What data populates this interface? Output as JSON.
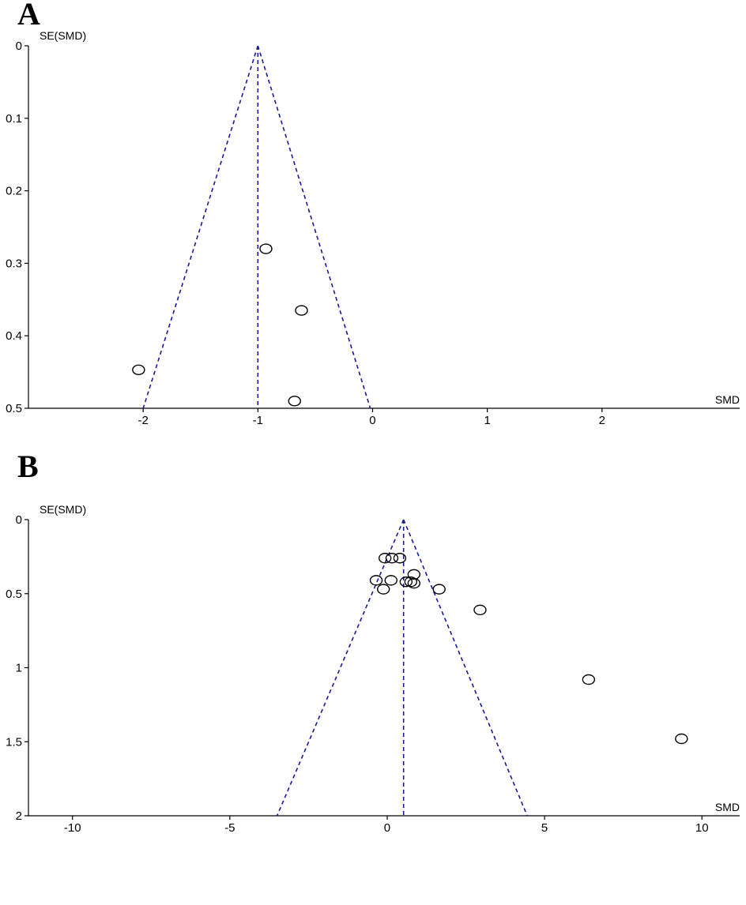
{
  "chart_data": [
    {
      "type": "scatter",
      "panel_label": "A",
      "ylabel": "SE(SMD)",
      "xlabel": "SMD",
      "y_reversed": true,
      "xlim": [
        -3.0,
        3.2
      ],
      "ylim": [
        0,
        0.5
      ],
      "xticks": [
        -2,
        -1,
        0,
        1,
        2
      ],
      "xtick_labels": [
        "-2",
        "-1",
        "0",
        "1",
        "2"
      ],
      "yticks": [
        0,
        0.1,
        0.2,
        0.3,
        0.4,
        0.5
      ],
      "ytick_labels": [
        "0",
        "0.1",
        "0.2",
        "0.3",
        "0.4",
        "0.5"
      ],
      "grid": false,
      "funnel": {
        "center": -1.0,
        "apex_se": 0,
        "base_se": 0.5,
        "base_left": -2.0,
        "base_right": -0.02,
        "color": "#1a1aa0"
      },
      "points": [
        {
          "x": -0.93,
          "y": 0.28
        },
        {
          "x": -0.62,
          "y": 0.365
        },
        {
          "x": -2.04,
          "y": 0.447
        },
        {
          "x": -0.68,
          "y": 0.49
        }
      ]
    },
    {
      "type": "scatter",
      "panel_label": "B",
      "ylabel": "SE(SMD)",
      "xlabel": "SMD",
      "y_reversed": true,
      "xlim": [
        -11.4,
        11.2
      ],
      "ylim": [
        0,
        2
      ],
      "xticks": [
        -10,
        -5,
        0,
        5,
        10
      ],
      "xtick_labels": [
        "-10",
        "-5",
        "0",
        "5",
        "10"
      ],
      "yticks": [
        0,
        0.5,
        1,
        1.5,
        2
      ],
      "ytick_labels": [
        "0",
        "0.5",
        "1",
        "1.5",
        "2"
      ],
      "grid": false,
      "funnel": {
        "center": 0.52,
        "apex_se": 0,
        "base_se": 2,
        "base_left": -3.5,
        "base_right": 4.45,
        "color": "#1a1aa0"
      },
      "points": [
        {
          "x": -0.07,
          "y": 0.26
        },
        {
          "x": 0.15,
          "y": 0.26
        },
        {
          "x": 0.4,
          "y": 0.26
        },
        {
          "x": -0.35,
          "y": 0.41
        },
        {
          "x": 0.12,
          "y": 0.41
        },
        {
          "x": -0.12,
          "y": 0.47
        },
        {
          "x": 0.6,
          "y": 0.42
        },
        {
          "x": 0.85,
          "y": 0.37
        },
        {
          "x": 0.75,
          "y": 0.42
        },
        {
          "x": 0.85,
          "y": 0.43
        },
        {
          "x": 1.65,
          "y": 0.47
        },
        {
          "x": 2.95,
          "y": 0.61
        },
        {
          "x": 6.4,
          "y": 1.08
        },
        {
          "x": 9.35,
          "y": 1.48
        }
      ]
    }
  ]
}
